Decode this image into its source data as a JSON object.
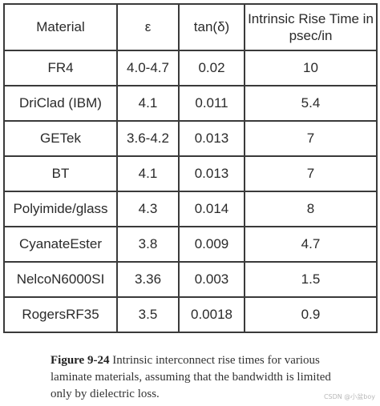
{
  "table": {
    "headers": [
      "Material",
      "ε",
      "tan(δ)",
      "Intrinsic Rise Time in psec/in"
    ],
    "rows": [
      [
        "FR4",
        "4.0-4.7",
        "0.02",
        "10"
      ],
      [
        "DriClad (IBM)",
        "4.1",
        "0.011",
        "5.4"
      ],
      [
        "GETek",
        "3.6-4.2",
        "0.013",
        "7"
      ],
      [
        "BT",
        "4.1",
        "0.013",
        "7"
      ],
      [
        "Polyimide/glass",
        "4.3",
        "0.014",
        "8"
      ],
      [
        "CyanateEster",
        "3.8",
        "0.009",
        "4.7"
      ],
      [
        "NelcoN6000SI",
        "3.36",
        "0.003",
        "1.5"
      ],
      [
        "RogersRF35",
        "3.5",
        "0.0018",
        "0.9"
      ]
    ]
  },
  "caption": {
    "label": "Figure 9-24",
    "text": " Intrinsic interconnect rise times for various laminate materials, assuming that the bandwidth is limited only by dielectric loss."
  },
  "watermark": "CSDN @小盆boy",
  "colors": {
    "border": "#3a3a3a",
    "text": "#2a2a2a",
    "background": "#ffffff"
  }
}
